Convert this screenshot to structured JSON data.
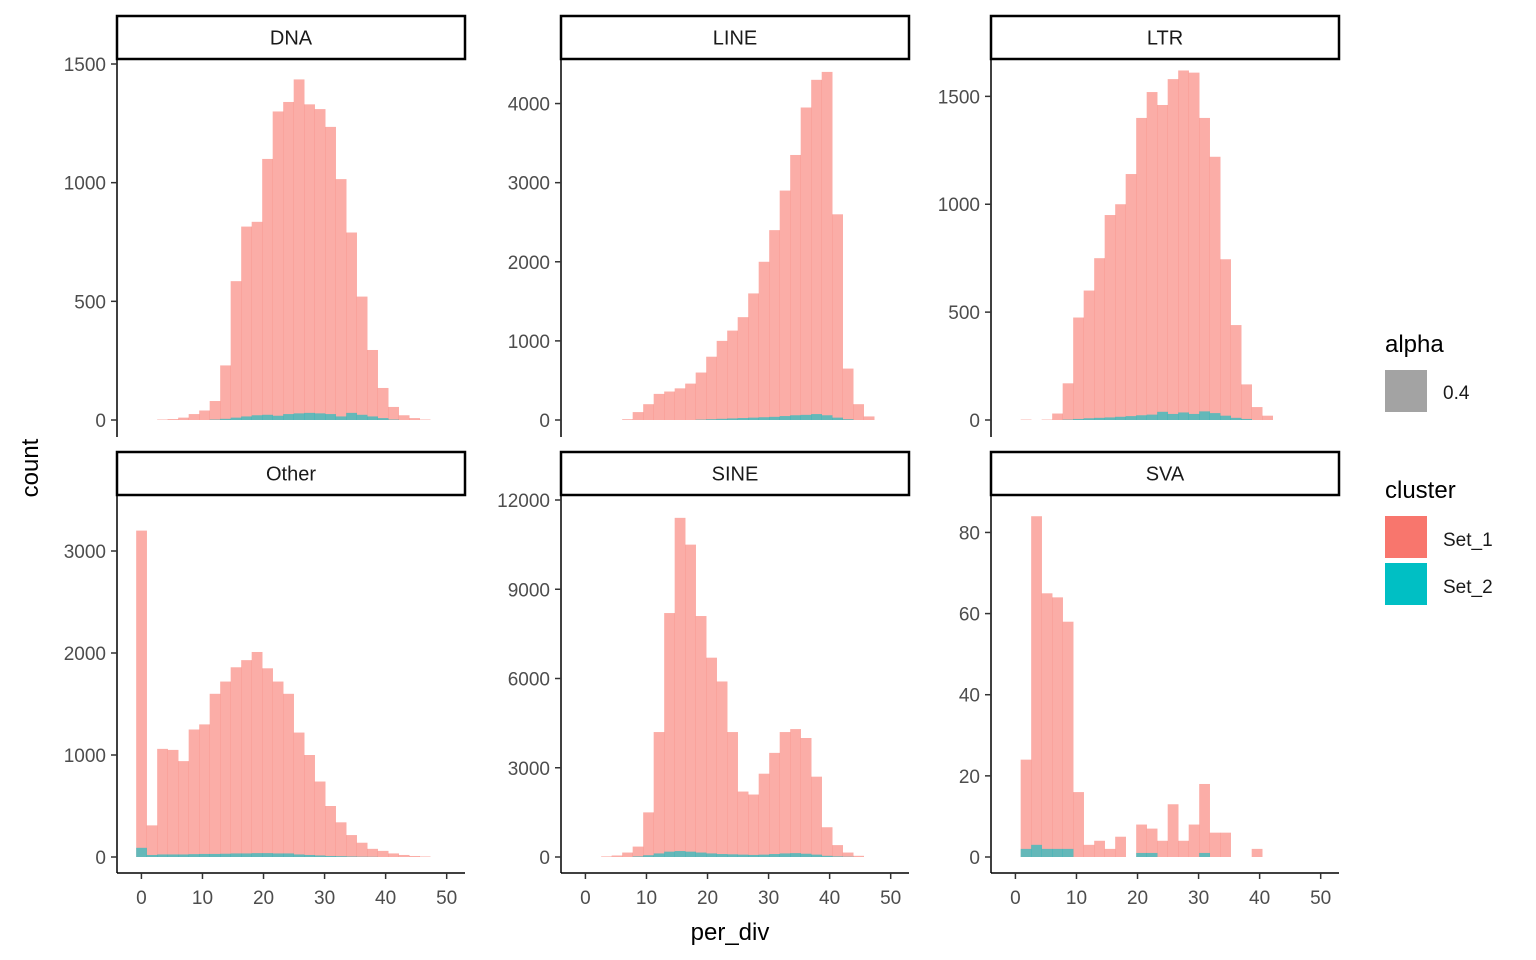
{
  "chart_data": {
    "type": "bar",
    "subtype": "faceted-histogram",
    "xlabel": "per_div",
    "ylabel": "count",
    "x_ticks": [
      0,
      10,
      20,
      30,
      40,
      50
    ],
    "xlim": [
      -4,
      53
    ],
    "bin_width": 1.72,
    "bin_start": -0.86,
    "colors": {
      "Set_1": "#F8766D",
      "Set_2": "#00BFC4",
      "alpha_key": "#A3A3A3"
    },
    "legends": {
      "alpha": {
        "title": "alpha",
        "items": [
          "0.4"
        ]
      },
      "cluster": {
        "title": "cluster",
        "items": [
          "Set_1",
          "Set_2"
        ]
      }
    },
    "panels": [
      {
        "name": "DNA",
        "ylim": [
          0,
          1500
        ],
        "y_ticks": [
          0,
          500,
          1000,
          1500
        ],
        "y_tick_labels": [
          "0",
          "500",
          "1000",
          "1500"
        ],
        "series": [
          {
            "name": "Set_1",
            "values": [
              0,
              0,
              2,
              4,
              10,
              25,
              40,
              80,
              230,
              585,
              815,
              835,
              1100,
              1300,
              1340,
              1435,
              1330,
              1310,
              1235,
              1015,
              790,
              520,
              295,
              135,
              55,
              20,
              8,
              2,
              0,
              0
            ]
          },
          {
            "name": "Set_2",
            "values": [
              0,
              0,
              0,
              0,
              0,
              0,
              0,
              2,
              5,
              10,
              15,
              20,
              22,
              18,
              25,
              28,
              30,
              28,
              25,
              15,
              30,
              22,
              15,
              8,
              2,
              0,
              0,
              0,
              0,
              0
            ]
          }
        ]
      },
      {
        "name": "LINE",
        "ylim": [
          0,
          4500
        ],
        "y_ticks": [
          0,
          1000,
          2000,
          3000,
          4000
        ],
        "y_tick_labels": [
          "0",
          "1000",
          "2000",
          "3000",
          "4000"
        ],
        "series": [
          {
            "name": "Set_1",
            "values": [
              0,
              0,
              0,
              0,
              10,
              100,
              200,
              330,
              360,
              400,
              460,
              600,
              800,
              1000,
              1130,
              1300,
              1600,
              2000,
              2400,
              2900,
              3350,
              3950,
              4300,
              4400,
              2600,
              650,
              200,
              45,
              0,
              0
            ]
          },
          {
            "name": "Set_2",
            "values": [
              0,
              0,
              0,
              0,
              0,
              0,
              0,
              0,
              0,
              0,
              0,
              5,
              10,
              15,
              20,
              25,
              30,
              35,
              40,
              50,
              60,
              65,
              75,
              60,
              30,
              10,
              0,
              0,
              0,
              0
            ]
          }
        ]
      },
      {
        "name": "LTR",
        "ylim": [
          0,
          1650
        ],
        "y_ticks": [
          0,
          500,
          1000,
          1500
        ],
        "y_tick_labels": [
          "0",
          "500",
          "1000",
          "1500"
        ],
        "series": [
          {
            "name": "Set_1",
            "values": [
              0,
              2,
              0,
              2,
              30,
              170,
              475,
              600,
              750,
              950,
              1000,
              1140,
              1400,
              1520,
              1460,
              1580,
              1620,
              1610,
              1400,
              1220,
              745,
              440,
              165,
              60,
              20,
              0,
              0,
              0,
              0,
              0
            ]
          },
          {
            "name": "Set_2",
            "values": [
              0,
              0,
              0,
              0,
              0,
              2,
              5,
              8,
              10,
              12,
              15,
              18,
              22,
              25,
              38,
              28,
              35,
              28,
              40,
              32,
              20,
              10,
              5,
              0,
              0,
              0,
              0,
              0,
              0,
              0
            ]
          }
        ]
      },
      {
        "name": "Other",
        "ylim": [
          0,
          3500
        ],
        "y_ticks": [
          0,
          1000,
          2000,
          3000
        ],
        "y_tick_labels": [
          "0",
          "1000",
          "2000",
          "3000"
        ],
        "series": [
          {
            "name": "Set_1",
            "values": [
              3200,
              310,
              1060,
              1050,
              940,
              1250,
              1300,
              1600,
              1720,
              1860,
              1930,
              2010,
              1850,
              1720,
              1600,
              1220,
              1000,
              740,
              500,
              340,
              215,
              140,
              80,
              60,
              35,
              20,
              10,
              5,
              0,
              0
            ]
          },
          {
            "name": "Set_2",
            "values": [
              90,
              20,
              25,
              25,
              25,
              28,
              30,
              30,
              32,
              35,
              35,
              38,
              38,
              35,
              35,
              25,
              20,
              15,
              10,
              8,
              5,
              3,
              2,
              0,
              0,
              0,
              0,
              0,
              0,
              0
            ]
          }
        ]
      },
      {
        "name": "SINE",
        "ylim": [
          0,
          12000
        ],
        "y_ticks": [
          0,
          3000,
          6000,
          9000,
          12000
        ],
        "y_tick_labels": [
          "0",
          "3000",
          "6000",
          "9000",
          "12000"
        ],
        "series": [
          {
            "name": "Set_1",
            "values": [
              0,
              0,
              20,
              50,
              150,
              350,
              1500,
              4200,
              8200,
              11400,
              10500,
              8100,
              6700,
              5900,
              4200,
              2200,
              2100,
              2800,
              3500,
              4200,
              4300,
              4000,
              2700,
              1000,
              400,
              150,
              40,
              0,
              0,
              0
            ]
          },
          {
            "name": "Set_2",
            "values": [
              0,
              0,
              0,
              0,
              0,
              20,
              60,
              120,
              180,
              200,
              180,
              150,
              120,
              100,
              90,
              80,
              70,
              80,
              100,
              120,
              130,
              110,
              80,
              40,
              20,
              10,
              0,
              0,
              0,
              0
            ]
          }
        ]
      },
      {
        "name": "SVA",
        "ylim": [
          0,
          88
        ],
        "y_ticks": [
          0,
          20,
          40,
          60,
          80
        ],
        "y_tick_labels": [
          "0",
          "20",
          "40",
          "60",
          "80"
        ],
        "series": [
          {
            "name": "Set_1",
            "values": [
              0,
              24,
              84,
              65,
              64,
              58,
              16,
              3,
              4,
              2,
              5,
              0,
              8,
              7,
              4,
              13,
              4,
              8,
              18,
              6,
              6,
              0,
              0,
              2,
              0,
              0,
              0,
              0,
              0,
              0
            ]
          },
          {
            "name": "Set_2",
            "values": [
              0,
              2,
              3,
              2,
              2,
              2,
              0,
              0,
              0,
              0,
              0,
              0,
              1,
              1,
              0,
              0,
              0,
              0,
              1,
              0,
              0,
              0,
              0,
              0,
              0,
              0,
              0,
              0,
              0,
              0
            ]
          }
        ]
      }
    ]
  }
}
